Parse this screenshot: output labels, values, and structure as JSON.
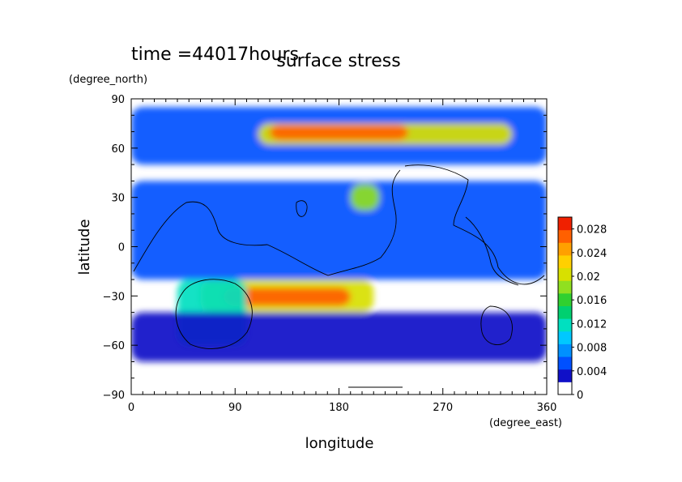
{
  "header": {
    "time_label": "time =44017hours",
    "title": "surface stress"
  },
  "chart_data": {
    "type": "heatmap",
    "title": "surface stress",
    "xlabel": "longitude",
    "ylabel": "latitude",
    "x_units": "(degree_east)",
    "y_units": "(degree_north)",
    "xlim": [
      0,
      360
    ],
    "ylim": [
      -90,
      90
    ],
    "x_ticks": [
      0,
      90,
      180,
      270,
      360
    ],
    "x_tick_labels": [
      "0",
      "90",
      "180",
      "270",
      "360"
    ],
    "y_ticks": [
      90,
      60,
      30,
      0,
      -30,
      -60,
      -90
    ],
    "y_tick_labels": [
      "90",
      "60",
      "30",
      "0",
      "−30",
      "−60",
      "−90"
    ],
    "colorbar": {
      "range": [
        0,
        0.03
      ],
      "tick_values": [
        0,
        0.004,
        0.008,
        0.012,
        0.016,
        0.02,
        0.024,
        0.028
      ],
      "tick_labels": [
        "0",
        "0.004",
        "0.008",
        "0.012",
        "0.016",
        "0.02",
        "0.024",
        "0.028"
      ],
      "colors": [
        "#ffffff",
        "#1010c8",
        "#0050ff",
        "#0090ff",
        "#00c8ff",
        "#00e0c0",
        "#00d070",
        "#30d030",
        "#90e020",
        "#d8e000",
        "#ffd000",
        "#ffa000",
        "#ff6000",
        "#f02000"
      ]
    },
    "regions": [
      {
        "name": "arctic band",
        "lon": [
          0,
          360
        ],
        "lat": [
          50,
          85
        ],
        "value": 0.006
      },
      {
        "name": "northern jet",
        "lon": [
          110,
          330
        ],
        "lat": [
          62,
          75
        ],
        "value": 0.02
      },
      {
        "name": "northern jet core",
        "lon": [
          120,
          240
        ],
        "lat": [
          65,
          74
        ],
        "value": 0.026
      },
      {
        "name": "tropics",
        "lon": [
          0,
          360
        ],
        "lat": [
          -20,
          40
        ],
        "value": 0.005
      },
      {
        "name": "central patch",
        "lon": [
          190,
          215
        ],
        "lat": [
          22,
          38
        ],
        "value": 0.018
      },
      {
        "name": "southern jet",
        "lon": [
          60,
          210
        ],
        "lat": [
          -40,
          -20
        ],
        "value": 0.02
      },
      {
        "name": "southern jet core",
        "lon": [
          80,
          190
        ],
        "lat": [
          -36,
          -25
        ],
        "value": 0.026
      },
      {
        "name": "southern ring",
        "lon": [
          40,
          100
        ],
        "lat": [
          -60,
          -20
        ],
        "value": 0.012
      },
      {
        "name": "southern scattered",
        "lon": [
          0,
          360
        ],
        "lat": [
          -70,
          -40
        ],
        "value": 0.004
      }
    ]
  }
}
